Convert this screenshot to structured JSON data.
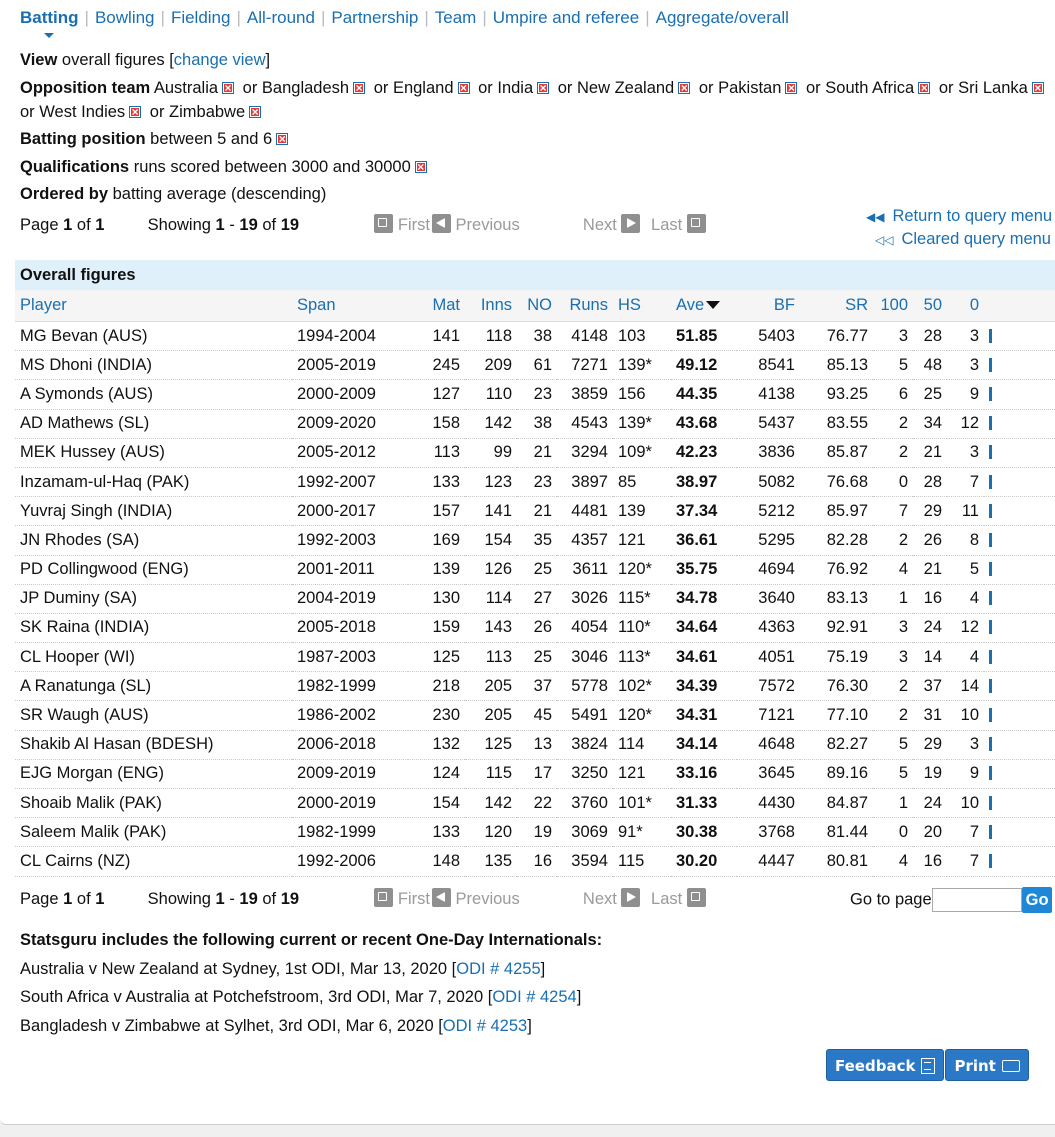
{
  "tabs": [
    {
      "label": "Batting",
      "active": true
    },
    {
      "label": "Bowling"
    },
    {
      "label": "Fielding"
    },
    {
      "label": "All-round"
    },
    {
      "label": "Partnership"
    },
    {
      "label": "Team"
    },
    {
      "label": "Umpire and referee"
    },
    {
      "label": "Aggregate/overall"
    }
  ],
  "criteria": {
    "view_label": "View",
    "view_value": "overall figures [",
    "change_view": "change view",
    "view_close": "]",
    "opposition_label": "Opposition team",
    "opposition_teams": [
      "Australia",
      "Bangladesh",
      "England",
      "India",
      "New Zealand",
      "Pakistan",
      "South Africa",
      "Sri Lanka",
      "West Indies",
      "Zimbabwe"
    ],
    "or_word": "or",
    "position_label": "Batting position",
    "position_value": "between 5 and 6",
    "qual_label": "Qualifications",
    "qual_value": "runs scored between 3000 and 30000",
    "order_label": "Ordered by",
    "order_value": "batting average (descending)"
  },
  "pager": {
    "page_word": "Page",
    "page": "1",
    "of_word": "of",
    "pages": "1",
    "showing_word": "Showing",
    "from": "1",
    "to": "19",
    "total": "19",
    "first": "First",
    "previous": "Previous",
    "next": "Next",
    "last": "Last",
    "goto": "Go to page",
    "go": "Go"
  },
  "query_links": [
    "Return to query menu",
    "Cleared query menu"
  ],
  "table": {
    "caption": "Overall figures",
    "headers": [
      "Player",
      "Span",
      "Mat",
      "Inns",
      "NO",
      "Runs",
      "HS",
      "Ave",
      "BF",
      "SR",
      "100",
      "50",
      "0"
    ],
    "rows": [
      [
        "MG Bevan (AUS)",
        "1994-2004",
        "141",
        "118",
        "38",
        "4148",
        "103",
        "51.85",
        "5403",
        "76.77",
        "3",
        "28",
        "3"
      ],
      [
        "MS Dhoni (INDIA)",
        "2005-2019",
        "245",
        "209",
        "61",
        "7271",
        "139*",
        "49.12",
        "8541",
        "85.13",
        "5",
        "48",
        "3"
      ],
      [
        "A Symonds (AUS)",
        "2000-2009",
        "127",
        "110",
        "23",
        "3859",
        "156",
        "44.35",
        "4138",
        "93.25",
        "6",
        "25",
        "9"
      ],
      [
        "AD Mathews (SL)",
        "2009-2020",
        "158",
        "142",
        "38",
        "4543",
        "139*",
        "43.68",
        "5437",
        "83.55",
        "2",
        "34",
        "12"
      ],
      [
        "MEK Hussey (AUS)",
        "2005-2012",
        "113",
        "99",
        "21",
        "3294",
        "109*",
        "42.23",
        "3836",
        "85.87",
        "2",
        "21",
        "3"
      ],
      [
        "Inzamam-ul-Haq (PAK)",
        "1992-2007",
        "133",
        "123",
        "23",
        "3897",
        "85",
        "38.97",
        "5082",
        "76.68",
        "0",
        "28",
        "7"
      ],
      [
        "Yuvraj Singh (INDIA)",
        "2000-2017",
        "157",
        "141",
        "21",
        "4481",
        "139",
        "37.34",
        "5212",
        "85.97",
        "7",
        "29",
        "11"
      ],
      [
        "JN Rhodes (SA)",
        "1992-2003",
        "169",
        "154",
        "35",
        "4357",
        "121",
        "36.61",
        "5295",
        "82.28",
        "2",
        "26",
        "8"
      ],
      [
        "PD Collingwood (ENG)",
        "2001-2011",
        "139",
        "126",
        "25",
        "3611",
        "120*",
        "35.75",
        "4694",
        "76.92",
        "4",
        "21",
        "5"
      ],
      [
        "JP Duminy (SA)",
        "2004-2019",
        "130",
        "114",
        "27",
        "3026",
        "115*",
        "34.78",
        "3640",
        "83.13",
        "1",
        "16",
        "4"
      ],
      [
        "SK Raina (INDIA)",
        "2005-2018",
        "159",
        "143",
        "26",
        "4054",
        "110*",
        "34.64",
        "4363",
        "92.91",
        "3",
        "24",
        "12"
      ],
      [
        "CL Hooper (WI)",
        "1987-2003",
        "125",
        "113",
        "25",
        "3046",
        "113*",
        "34.61",
        "4051",
        "75.19",
        "3",
        "14",
        "4"
      ],
      [
        "A Ranatunga (SL)",
        "1982-1999",
        "218",
        "205",
        "37",
        "5778",
        "102*",
        "34.39",
        "7572",
        "76.30",
        "2",
        "37",
        "14"
      ],
      [
        "SR Waugh (AUS)",
        "1986-2002",
        "230",
        "205",
        "45",
        "5491",
        "120*",
        "34.31",
        "7121",
        "77.10",
        "2",
        "31",
        "10"
      ],
      [
        "Shakib Al Hasan (BDESH)",
        "2006-2018",
        "132",
        "125",
        "13",
        "3824",
        "114",
        "34.14",
        "4648",
        "82.27",
        "5",
        "29",
        "3"
      ],
      [
        "EJG Morgan (ENG)",
        "2009-2019",
        "124",
        "115",
        "17",
        "3250",
        "121",
        "33.16",
        "3645",
        "89.16",
        "5",
        "19",
        "9"
      ],
      [
        "Shoaib Malik (PAK)",
        "2000-2019",
        "154",
        "142",
        "22",
        "3760",
        "101*",
        "31.33",
        "4430",
        "84.87",
        "1",
        "24",
        "10"
      ],
      [
        "Saleem Malik (PAK)",
        "1982-1999",
        "133",
        "120",
        "19",
        "3069",
        "91*",
        "30.38",
        "3768",
        "81.44",
        "0",
        "20",
        "7"
      ],
      [
        "CL Cairns (NZ)",
        "1992-2006",
        "148",
        "135",
        "16",
        "3594",
        "115",
        "30.20",
        "4447",
        "80.81",
        "4",
        "16",
        "7"
      ]
    ]
  },
  "includes": {
    "heading": "Statsguru includes the following current or recent One-Day Internationals:",
    "matches": [
      {
        "text": "Australia v New Zealand at Sydney, 1st ODI, Mar 13, 2020 [",
        "link": "ODI # 4255",
        "close": "]"
      },
      {
        "text": "South Africa v Australia at Potchefstroom, 3rd ODI, Mar 7, 2020 [",
        "link": "ODI # 4254",
        "close": "]"
      },
      {
        "text": "Bangladesh v Zimbabwe at Sylhet, 3rd ODI, Mar 6, 2020 [",
        "link": "ODI # 4253",
        "close": "]"
      }
    ]
  },
  "buttons": {
    "feedback": "Feedback",
    "print": "Print"
  },
  "colors": {
    "link": "#1a6fb0",
    "caption_bg": "#dff0fb",
    "remove_red": "#e53a3a",
    "button_blue": "#2b79c6"
  }
}
